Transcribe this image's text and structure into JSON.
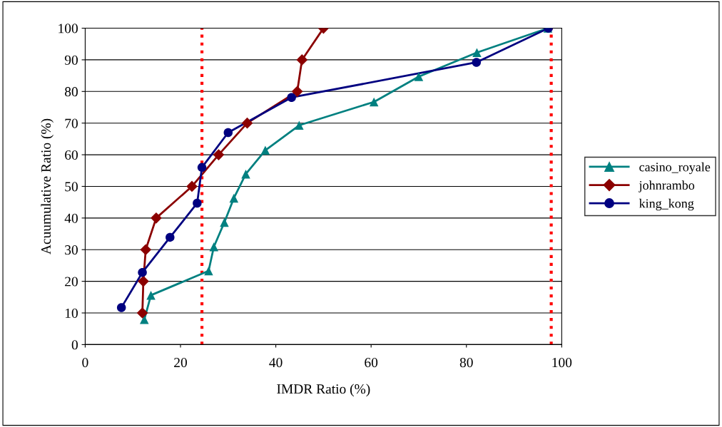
{
  "chart_data": {
    "type": "line",
    "xlabel": "IMDR Ratio (%)",
    "ylabel": "Acuumulative Ratio (%)",
    "xlim": [
      0,
      100
    ],
    "xticks": [
      0,
      20,
      40,
      60,
      80,
      100
    ],
    "ylim": [
      0,
      100
    ],
    "yticks": [
      0,
      10,
      20,
      30,
      40,
      50,
      60,
      70,
      80,
      90,
      100
    ],
    "grid": "y",
    "legend": "right",
    "series": [
      {
        "name": "casino_royale",
        "color": "#008080",
        "marker": "triangle",
        "x": [
          12.4,
          13.8,
          25.9,
          27.0,
          29.2,
          31.2,
          33.7,
          37.8,
          44.9,
          60.6,
          70.0,
          82.2,
          97.1
        ],
        "values": [
          7.9,
          15.6,
          23.3,
          30.9,
          38.6,
          46.3,
          53.9,
          61.4,
          69.3,
          76.7,
          84.7,
          92.3,
          100
        ]
      },
      {
        "name": "johnrambo",
        "color": "#8b0000",
        "marker": "diamond",
        "x": [
          12.0,
          12.2,
          12.7,
          14.9,
          22.4,
          28.0,
          34.0,
          44.5,
          45.5,
          50.0
        ],
        "values": [
          10,
          20,
          30,
          40,
          50,
          60,
          70,
          80,
          90,
          100
        ]
      },
      {
        "name": "king_kong",
        "color": "#000080",
        "marker": "circle",
        "x": [
          7.6,
          12.0,
          17.8,
          23.5,
          24.5,
          30.0,
          43.3,
          82.1,
          97.2
        ],
        "values": [
          11.7,
          22.8,
          33.9,
          44.7,
          56.0,
          67.0,
          78.1,
          89.2,
          100
        ]
      }
    ],
    "ref_lines": [
      {
        "axis": "x",
        "value": 24.5,
        "color": "#ff0000",
        "line_style": "dotted"
      },
      {
        "axis": "x",
        "value": 97.8,
        "color": "#ff0000",
        "line_style": "dotted"
      }
    ]
  }
}
